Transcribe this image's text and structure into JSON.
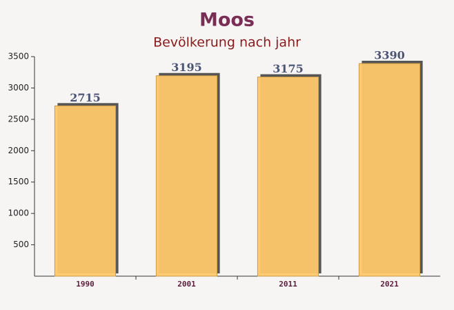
{
  "chart_data": {
    "type": "bar",
    "title": "Moos",
    "subtitle": "Bevölkerung nach jahr",
    "categories": [
      "1990",
      "2001",
      "2011",
      "2021"
    ],
    "values": [
      2715,
      3195,
      3175,
      3390
    ],
    "color": "#fec76a",
    "ylim": [
      0,
      3500
    ],
    "yticks": [
      500,
      1000,
      1500,
      2000,
      2500,
      3000,
      3500
    ]
  }
}
